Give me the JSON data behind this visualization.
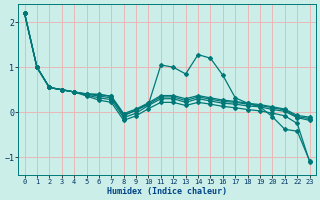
{
  "title": "",
  "xlabel": "Humidex (Indice chaleur)",
  "background_color": "#cceee8",
  "line_color": "#007878",
  "grid_color": "#e8b8b8",
  "xlim": [
    -0.5,
    23.5
  ],
  "ylim": [
    -1.4,
    2.4
  ],
  "xticks": [
    0,
    1,
    2,
    3,
    4,
    5,
    6,
    7,
    8,
    9,
    10,
    11,
    12,
    13,
    14,
    15,
    16,
    17,
    18,
    19,
    20,
    21,
    22,
    23
  ],
  "yticks": [
    -1,
    0,
    1,
    2
  ],
  "lines": [
    [
      2.2,
      1.0,
      0.55,
      0.5,
      0.45,
      0.4,
      0.4,
      0.35,
      -0.08,
      0.05,
      0.18,
      1.05,
      1.0,
      0.85,
      1.28,
      1.2,
      0.82,
      0.32,
      0.2,
      0.12,
      -0.1,
      -0.38,
      -0.42,
      -1.08
    ],
    [
      2.2,
      1.0,
      0.55,
      0.5,
      0.45,
      0.38,
      0.32,
      0.28,
      -0.12,
      -0.02,
      0.15,
      0.3,
      0.3,
      0.22,
      0.3,
      0.25,
      0.2,
      0.18,
      0.14,
      0.12,
      0.06,
      0.02,
      -0.12,
      -0.18
    ],
    [
      2.2,
      1.0,
      0.55,
      0.5,
      0.45,
      0.4,
      0.36,
      0.32,
      -0.06,
      0.04,
      0.18,
      0.34,
      0.34,
      0.26,
      0.34,
      0.29,
      0.24,
      0.22,
      0.18,
      0.15,
      0.1,
      0.05,
      -0.1,
      -0.14
    ],
    [
      2.2,
      1.0,
      0.55,
      0.5,
      0.45,
      0.41,
      0.39,
      0.36,
      -0.03,
      0.07,
      0.21,
      0.37,
      0.37,
      0.3,
      0.37,
      0.32,
      0.27,
      0.24,
      0.2,
      0.17,
      0.12,
      0.07,
      -0.07,
      -0.11
    ],
    [
      2.2,
      1.0,
      0.55,
      0.5,
      0.45,
      0.36,
      0.27,
      0.22,
      -0.18,
      -0.08,
      0.08,
      0.22,
      0.22,
      0.15,
      0.22,
      0.18,
      0.13,
      0.1,
      0.06,
      0.03,
      -0.02,
      -0.08,
      -0.25,
      -1.1
    ]
  ]
}
